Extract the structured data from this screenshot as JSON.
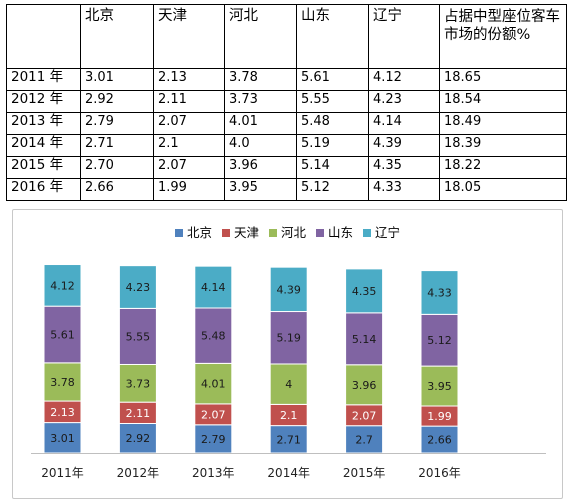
{
  "table": {
    "headers": [
      "",
      "北京",
      "天津",
      "河北",
      "山东",
      "辽宁",
      "占据中型座位客车市场的份额%"
    ],
    "rows": [
      [
        "2011 年",
        "3.01",
        "2.13",
        "3.78",
        "5.61",
        "4.12",
        "18.65"
      ],
      [
        "2012 年",
        "2.92",
        "2.11",
        "3.73",
        "5.55",
        "4.23",
        "18.54"
      ],
      [
        "2013 年",
        "2.79",
        "2.07",
        "4.01",
        "5.48",
        "4.14",
        "18.49"
      ],
      [
        "2014 年",
        "2.71",
        "2.1",
        "4.0",
        "5.19",
        "4.39",
        "18.39"
      ],
      [
        "2015 年",
        "2.70",
        "2.07",
        "3.96",
        "5.14",
        "4.35",
        "18.22"
      ],
      [
        "2016 年",
        "2.66",
        "1.99",
        "3.95",
        "5.12",
        "4.33",
        "18.05"
      ]
    ]
  },
  "chart_data": {
    "type": "bar",
    "stacked": true,
    "categories": [
      "2011年",
      "2012年",
      "2013年",
      "2014年",
      "2015年",
      "2016年"
    ],
    "series": [
      {
        "name": "北京",
        "color": "#4f81bd",
        "values": [
          3.01,
          2.92,
          2.79,
          2.71,
          2.7,
          2.66
        ]
      },
      {
        "name": "天津",
        "color": "#c0504d",
        "values": [
          2.13,
          2.11,
          2.07,
          2.1,
          2.07,
          1.99
        ]
      },
      {
        "name": "河北",
        "color": "#9bbb59",
        "values": [
          3.78,
          3.73,
          4.01,
          4,
          3.96,
          3.95
        ]
      },
      {
        "name": "山东",
        "color": "#8064a2",
        "values": [
          5.61,
          5.55,
          5.48,
          5.19,
          5.14,
          5.12
        ]
      },
      {
        "name": "辽宁",
        "color": "#4bacc6",
        "values": [
          4.12,
          4.23,
          4.14,
          4.39,
          4.35,
          4.33
        ]
      }
    ],
    "ylim": [
      0,
      19
    ],
    "legend_position": "top",
    "grid": false,
    "data_labels": true,
    "title": "",
    "xlabel": "",
    "ylabel": ""
  }
}
